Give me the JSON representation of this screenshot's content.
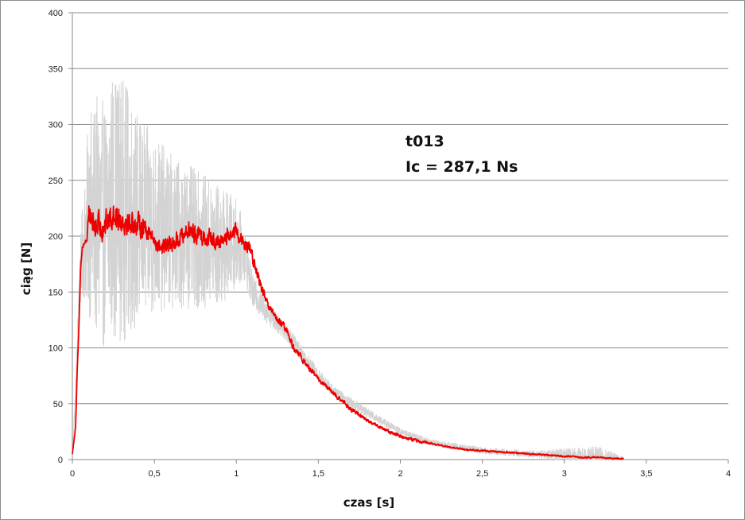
{
  "chart_data": {
    "type": "line",
    "title": "",
    "xlabel": "czas [s]",
    "ylabel": "ciąg [N]",
    "xlim": [
      0,
      4
    ],
    "ylim": [
      0,
      400
    ],
    "x_ticks": [
      0,
      0.5,
      1,
      1.5,
      2,
      2.5,
      3,
      3.5,
      4
    ],
    "x_tick_labels": [
      "0",
      "0,5",
      "1",
      "1,5",
      "2",
      "2,5",
      "3",
      "3,5",
      "4"
    ],
    "y_ticks": [
      0,
      50,
      100,
      150,
      200,
      250,
      300,
      350,
      400
    ],
    "y_tick_labels": [
      "0",
      "50",
      "100",
      "150",
      "200",
      "250",
      "300",
      "350",
      "400"
    ],
    "grid": "horizontal",
    "annotations": [
      "t013",
      "Ic = 287,1 Ns"
    ],
    "series": [
      {
        "color": "#d3d3d3",
        "x": [
          0.0,
          0.02,
          0.04,
          0.06,
          0.08,
          0.1,
          0.12,
          0.15,
          0.2,
          0.25,
          0.3,
          0.35,
          0.4,
          0.5,
          0.6,
          0.7,
          0.8,
          0.9,
          1.0,
          1.05,
          1.1,
          1.2,
          1.3,
          1.4,
          1.5,
          1.6,
          1.8,
          2.0,
          2.2,
          2.5,
          2.8,
          3.0,
          3.1,
          3.2,
          3.3,
          3.36
        ],
        "y": [
          5,
          60,
          150,
          185,
          200,
          220,
          215,
          215,
          210,
          230,
          225,
          220,
          215,
          210,
          205,
          200,
          195,
          190,
          195,
          185,
          150,
          130,
          115,
          95,
          75,
          60,
          42,
          25,
          15,
          8,
          5,
          4,
          3,
          3,
          2,
          1
        ],
        "amplitude": [
          0,
          10,
          20,
          40,
          60,
          90,
          100,
          110,
          110,
          120,
          120,
          110,
          95,
          80,
          70,
          65,
          60,
          55,
          40,
          25,
          15,
          10,
          8,
          7,
          6,
          5,
          4,
          3,
          3,
          3,
          3,
          6,
          8,
          10,
          4,
          2
        ]
      },
      {
        "color": "#ee0000",
        "x": [
          0.0,
          0.02,
          0.03,
          0.04,
          0.05,
          0.06,
          0.07,
          0.08,
          0.09,
          0.1,
          0.11,
          0.13,
          0.15,
          0.2,
          0.25,
          0.3,
          0.35,
          0.4,
          0.45,
          0.5,
          0.55,
          0.6,
          0.7,
          0.8,
          0.9,
          0.95,
          1.0,
          1.05,
          1.08,
          1.1,
          1.15,
          1.2,
          1.25,
          1.3,
          1.35,
          1.4,
          1.5,
          1.6,
          1.7,
          1.8,
          1.9,
          2.0,
          2.1,
          2.2,
          2.3,
          2.4,
          2.5,
          2.6,
          2.7,
          2.8,
          2.9,
          3.0,
          3.1,
          3.2,
          3.3,
          3.36
        ],
        "y": [
          5,
          30,
          80,
          120,
          170,
          190,
          193,
          195,
          198,
          225,
          215,
          210,
          208,
          210,
          220,
          215,
          212,
          210,
          208,
          195,
          190,
          192,
          205,
          200,
          195,
          200,
          205,
          190,
          190,
          180,
          155,
          135,
          125,
          118,
          100,
          90,
          72,
          58,
          45,
          35,
          27,
          21,
          17,
          14,
          11,
          9,
          8,
          7,
          6,
          5,
          4,
          3,
          2,
          2,
          1,
          1
        ],
        "amplitude": [
          0,
          2,
          2,
          2,
          3,
          3,
          3,
          3,
          6,
          12,
          14,
          16,
          18,
          18,
          18,
          17,
          16,
          15,
          14,
          12,
          12,
          12,
          12,
          12,
          11,
          10,
          10,
          8,
          8,
          8,
          6,
          5,
          5,
          5,
          4,
          4,
          3,
          3,
          3,
          2,
          2,
          2,
          2,
          1,
          1,
          1,
          1,
          1,
          1,
          1,
          1,
          1,
          1,
          1,
          1,
          1
        ]
      }
    ]
  }
}
